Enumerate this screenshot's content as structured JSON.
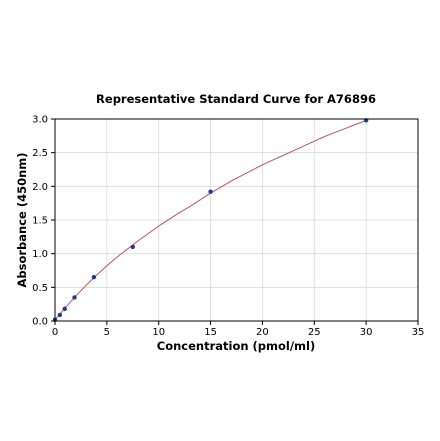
{
  "chart_data": {
    "type": "scatter",
    "title": "Representative Standard Curve for A76896",
    "xlabel": "Concentration (pmol/ml)",
    "ylabel": "Absorbance (450nm)",
    "xlim": [
      0,
      35
    ],
    "ylim": [
      0,
      3.0
    ],
    "xticks": [
      "0",
      "5",
      "10",
      "15",
      "20",
      "25",
      "30",
      "35"
    ],
    "yticks": [
      "0.0",
      "0.5",
      "1.0",
      "1.5",
      "2.0",
      "2.5",
      "3.0"
    ],
    "grid": true,
    "legend": "none",
    "points": [
      {
        "x": 0,
        "y": 0.02
      },
      {
        "x": 0.47,
        "y": 0.09
      },
      {
        "x": 0.94,
        "y": 0.18
      },
      {
        "x": 1.88,
        "y": 0.35
      },
      {
        "x": 3.75,
        "y": 0.65
      },
      {
        "x": 7.5,
        "y": 1.1
      },
      {
        "x": 15,
        "y": 1.92
      },
      {
        "x": 30,
        "y": 2.98
      }
    ],
    "fit_curve": {
      "x": [
        0,
        1,
        2,
        3,
        4,
        5,
        6,
        7,
        8,
        9,
        10,
        11,
        12,
        13,
        14,
        15,
        16,
        17,
        18,
        19,
        20,
        21,
        22,
        23,
        24,
        25,
        26,
        27,
        28,
        29,
        30
      ],
      "y": [
        0.02,
        0.2,
        0.37,
        0.53,
        0.68,
        0.82,
        0.95,
        1.07,
        1.19,
        1.3,
        1.41,
        1.51,
        1.61,
        1.7,
        1.8,
        1.9,
        1.99,
        2.08,
        2.16,
        2.24,
        2.32,
        2.39,
        2.46,
        2.53,
        2.6,
        2.67,
        2.74,
        2.8,
        2.86,
        2.92,
        2.98
      ]
    },
    "colors": {
      "points": "#1f3a8a",
      "curve": "#c0506e",
      "grid": "#d9d9d9",
      "axes": "#000000"
    }
  }
}
